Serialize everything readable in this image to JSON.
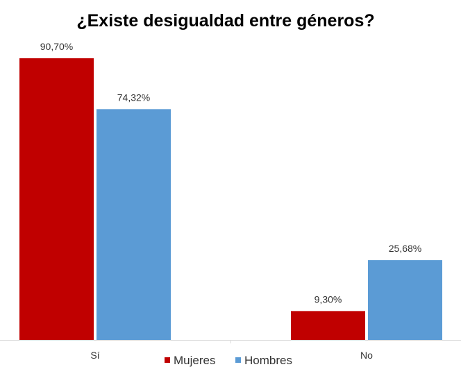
{
  "chart_data": {
    "type": "bar",
    "title": "¿Existe desigualdad entre géneros?",
    "xlabel": "",
    "ylabel": "",
    "categories": [
      "Sí",
      "No"
    ],
    "series": [
      {
        "name": "Mujeres",
        "values": [
          90.7,
          9.3
        ],
        "labels": [
          "90,70%",
          "9,30%"
        ],
        "color": "#C00000"
      },
      {
        "name": "Hombres",
        "values": [
          74.32,
          25.68
        ],
        "labels": [
          "74,32%",
          "25,68%"
        ],
        "color": "#5B9BD5"
      }
    ],
    "ylim": [
      0,
      100
    ],
    "grid": false,
    "legend_position": "bottom",
    "axis_color": "#D9D9D9"
  }
}
